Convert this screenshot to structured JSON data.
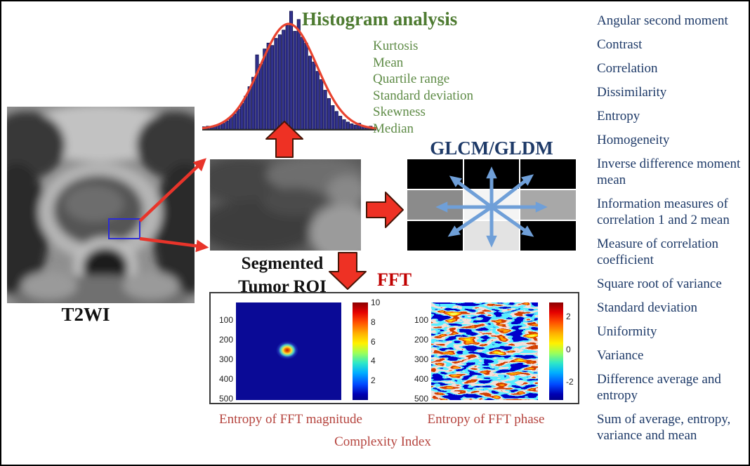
{
  "palette": {
    "green_title": "#4E7B31",
    "green_list": "#5E8B46",
    "navy": "#1E3A68",
    "caption_red": "#B5443E",
    "fft_red": "#C00000",
    "arrow_red": "#EE3124",
    "arrow_outline": "#471507",
    "thin_arrow_red": "#E8342A",
    "hist_bar": "#31318C",
    "hist_bar_edge": "#10104A",
    "curve_red": "#E8432F",
    "glcm_arrow_blue": "#6F9FD8"
  },
  "left_panel": {
    "image_label": "T2WI"
  },
  "histogram": {
    "title": "Histogram analysis",
    "features": [
      "Kurtosis",
      "Mean",
      "Quartile range",
      "Standard deviation",
      "Skewness",
      "Median"
    ],
    "bars": [
      0.02,
      0.025,
      0.02,
      0.03,
      0.04,
      0.05,
      0.07,
      0.1,
      0.13,
      0.17,
      0.22,
      0.28,
      0.36,
      0.44,
      0.63,
      0.55,
      0.68,
      0.73,
      0.71,
      0.77,
      0.8,
      0.84,
      0.88,
      1.0,
      0.83,
      0.93,
      0.78,
      0.73,
      0.62,
      0.57,
      0.49,
      0.42,
      0.33,
      0.26,
      0.2,
      0.15,
      0.11,
      0.08,
      0.06,
      0.045,
      0.035,
      0.05,
      0.03,
      0.02,
      0.025,
      0.015
    ]
  },
  "roi": {
    "label_line1": "Segmented",
    "label_line2": "Tumor ROI"
  },
  "glcm": {
    "title": "GLCM/GLDM",
    "cells": [
      "#000000",
      "#000000",
      "#000000",
      "#8B8B8B",
      "#F4F4F4",
      "#A8A8A8",
      "#000000",
      "#E3E3E3",
      "#000000"
    ]
  },
  "fft": {
    "label": "FFT",
    "magnitude": {
      "yticks": [
        "100",
        "200",
        "300",
        "400",
        "500"
      ],
      "colorbar_ticks": [
        "10",
        "8",
        "6",
        "4",
        "2"
      ],
      "caption": "Entropy of FFT magnitude"
    },
    "phase": {
      "yticks": [
        "100",
        "200",
        "300",
        "400",
        "500"
      ],
      "colorbar_ticks": [
        "2",
        "0",
        "-2"
      ],
      "caption": "Entropy of FFT phase"
    },
    "bottom_caption": "Complexity Index"
  },
  "texture_features": {
    "items": [
      "Angular second moment",
      "Contrast",
      "Correlation",
      "Dissimilarity",
      "Entropy",
      "Homogeneity",
      "Inverse difference moment mean",
      "Information measures of correlation 1 and 2 mean",
      "Measure of correlation coefficient",
      "Square root of variance",
      "Standard deviation",
      "Uniformity",
      "Variance",
      "Difference average and entropy",
      "Sum of average, entropy, variance and mean"
    ]
  }
}
